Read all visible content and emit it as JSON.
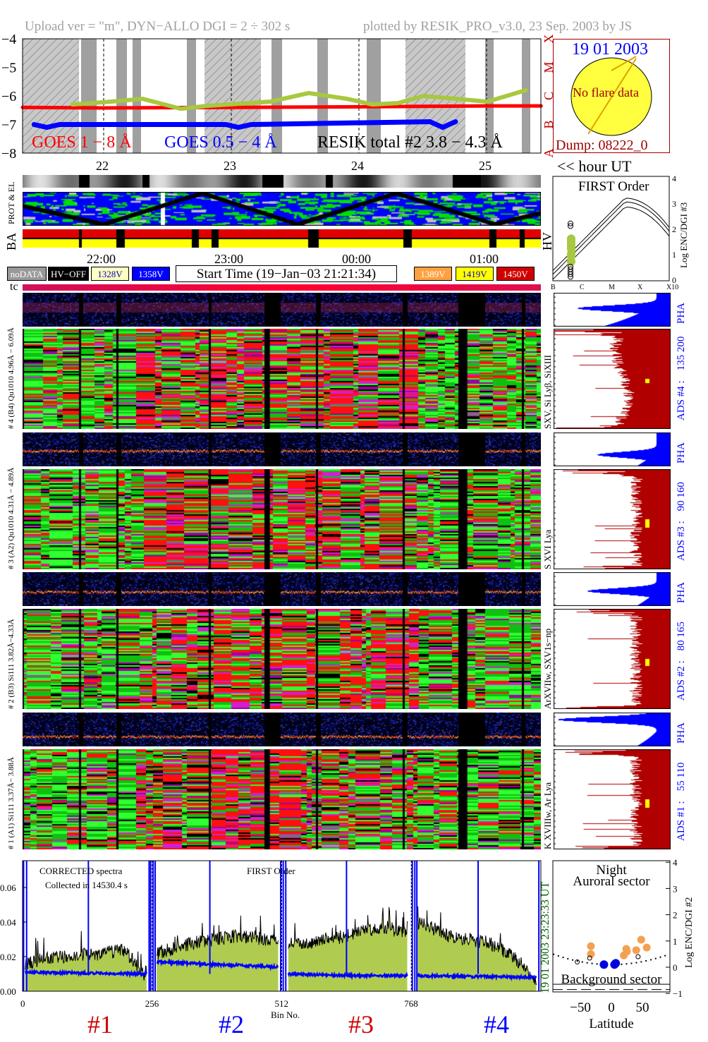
{
  "header": {
    "upload_info": "Upload ver = \"m\", DYN−ALLO DGI =   2 ÷ 302 s",
    "plotted_by": "plotted by RESIK_PRO_v3.0, 23 Sep. 2003 by JS"
  },
  "goes_panel": {
    "y_ticks": [
      "−4",
      "−5",
      "−6",
      "−7",
      "−8"
    ],
    "class_labels": [
      "X",
      "M",
      "C",
      "B",
      "A"
    ],
    "legend": {
      "goes_long": "GOES 1 − 8 Å",
      "goes_short": "GOES 0.5 − 4 Å",
      "resik": "RESIK total #2  3.8 − 4.3 Å"
    },
    "hour_labels": [
      "22",
      "23",
      "24",
      "25"
    ],
    "hour_unit": "<< hour UT",
    "colors": {
      "goes_long": "#ff0000",
      "goes_short": "#0000ff",
      "resik": "#a8c840",
      "resik_alt": "#f4a050"
    }
  },
  "sun_panel": {
    "date": "19 01 2003",
    "status": "No flare data",
    "dump": "Dump: 08222_0"
  },
  "orbit_panels": {
    "prot_el_label": "PROT & EL",
    "ba_label": "BA",
    "hv_label": "HV"
  },
  "time_axis": {
    "labels": [
      "22:00",
      "23:00",
      "00:00",
      "01:00"
    ],
    "start_time": "Start Time (19−Jan−03 21:21:34)",
    "tc_label": "tc"
  },
  "hv_legend": [
    {
      "label": "noDATA",
      "color": "#999999",
      "text_color": "#ffffff"
    },
    {
      "label": "HV−OFF",
      "color": "#000000",
      "text_color": "#ffffff"
    },
    {
      "label": "1328V",
      "color": "#ffffc0",
      "text_color": "#0000c0"
    },
    {
      "label": "1358V",
      "color": "#0000ff",
      "text_color": "#ffffff"
    },
    {
      "label": "1389V",
      "color": "#ffa040",
      "text_color": "#ffffff"
    },
    {
      "label": "1419V",
      "color": "#ffff00",
      "text_color": "#0000c0"
    },
    {
      "label": "1450V",
      "color": "#d00000",
      "text_color": "#ffffff"
    }
  ],
  "first_order_panel": {
    "title": "FIRST Order",
    "x_ticks": [
      "B",
      "C",
      "M",
      "X",
      "X10"
    ],
    "y_ticks": [
      "0",
      "1",
      "2",
      "3",
      "4"
    ],
    "ylabel": "Log ENC/DGI #3"
  },
  "channels": [
    {
      "left_label": "# 4 (B4) Qu1010 4.96Å − 6.09Å",
      "lines": "SXV, Si Lyβ, SiXIII",
      "ads": "ADS #4 :",
      "range": "135 200",
      "pha": "PHA"
    },
    {
      "left_label": "# 3 (A2) Qu1010 4.31Å − 4.89Å",
      "lines": "S XVI Lya",
      "ads": "ADS #3 :",
      "range": "90 160",
      "pha": "PHA"
    },
    {
      "left_label": "# 2 (B3) Si111 3.82Å−4.33Å",
      "lines": "ArXVIIw, SXV1s−np",
      "ads": "ADS #2 :",
      "range": "80 165",
      "pha": "PHA"
    },
    {
      "left_label": "# 1 (A1) Si111 3.37Å− 3.88Å",
      "lines": "K XVIIIw, Ar Lya",
      "ads": "ADS #1 :",
      "range": "55 110",
      "pha": "PHA"
    }
  ],
  "spectrum_panel": {
    "note1": "CORRECTED spectra",
    "note2": "Collected in 14530.4 s",
    "note3": "FIRST Order",
    "y_ticks": [
      "0.00",
      "0.02",
      "0.04",
      "0.06"
    ],
    "x_ticks": [
      "0",
      "256",
      "512",
      "768"
    ],
    "xlabel": "Bin No.",
    "channel_ids": [
      {
        "label": "#1",
        "color": "#d00000"
      },
      {
        "label": "#2",
        "color": "#0000ff"
      },
      {
        "label": "#3",
        "color": "#d00000"
      },
      {
        "label": "#4",
        "color": "#0000ff"
      }
    ],
    "timestamp": "19 01 2003    23:23:33 UT"
  },
  "latitude_panel": {
    "title1": "Night",
    "title2": "Auroral sector",
    "bottom_label": "Background sector",
    "x_ticks": [
      "−50",
      "0",
      "50"
    ],
    "y_ticks": [
      "4",
      "3",
      "2",
      "1",
      "0",
      "−1"
    ],
    "xlabel": "Latitude",
    "ylabel": "Log ENC/DGI #2"
  },
  "chart_data": [
    {
      "type": "line",
      "title": "",
      "xlabel": "hour UT",
      "ylabel": "",
      "x_range": [
        21.36,
        25.42
      ],
      "ylim": [
        -8,
        -4
      ],
      "series": [
        {
          "name": "GOES 1 − 8 Å",
          "color": "#ff0000",
          "x": [
            21.36,
            22.0,
            23.0,
            24.0,
            25.0,
            25.42
          ],
          "y": [
            -6.4,
            -6.42,
            -6.4,
            -6.38,
            -6.35,
            -6.35
          ]
        },
        {
          "name": "GOES 0.5 − 4 Å",
          "color": "#0000ff",
          "x": [
            21.45,
            21.55,
            21.65,
            22.95,
            23.05,
            23.15,
            24.55,
            24.65,
            24.75
          ],
          "y": [
            -7.0,
            -7.1,
            -7.0,
            -7.0,
            -7.1,
            -7.0,
            -6.9,
            -7.1,
            -6.9
          ]
        },
        {
          "name": "RESIK total #2  3.8 − 4.3 Å",
          "color": "#a8c840",
          "x": [
            21.75,
            22.05,
            22.3,
            22.6,
            22.8,
            23.3,
            23.6,
            23.9,
            24.1,
            24.3,
            24.5,
            25.0,
            25.3
          ],
          "y": [
            -6.3,
            -6.2,
            -6.1,
            -6.45,
            -6.35,
            -6.2,
            -5.9,
            -6.1,
            -6.3,
            -6.25,
            -6.0,
            -6.2,
            -5.8
          ]
        }
      ]
    },
    {
      "type": "line",
      "title": "",
      "xlabel": "Bin No.",
      "ylabel": "",
      "x_range": [
        0,
        1024
      ],
      "ylim": [
        0,
        0.075
      ],
      "series": [
        {
          "name": "",
          "color": "#a8c840",
          "x": [
            5,
            40,
            80,
            120,
            160,
            200,
            240,
            265,
            300,
            340,
            380,
            420,
            460,
            500,
            525,
            560,
            600,
            640,
            680,
            720,
            760,
            780,
            800,
            840,
            880,
            920,
            960,
            1000,
            1015
          ],
          "y": [
            0.015,
            0.019,
            0.02,
            0.021,
            0.022,
            0.024,
            0.01,
            0.022,
            0.025,
            0.028,
            0.03,
            0.032,
            0.031,
            0.029,
            0.027,
            0.028,
            0.03,
            0.032,
            0.035,
            0.037,
            0.033,
            0.04,
            0.038,
            0.032,
            0.03,
            0.028,
            0.022,
            0.012,
            0.005
          ]
        },
        {
          "name": "",
          "color": "#0000ff",
          "x": [
            5,
            120,
            240,
            265,
            380,
            505,
            525,
            640,
            760,
            780,
            900,
            1015
          ],
          "y": [
            0.011,
            0.0105,
            0.01,
            0.017,
            0.0155,
            0.014,
            0.01,
            0.009,
            0.009,
            0.009,
            0.0085,
            0.008
          ]
        }
      ]
    },
    {
      "type": "scatter",
      "title": "",
      "xlabel": "Latitude",
      "ylabel": "Log ENC/DGI #2",
      "xlim": [
        -94,
        94
      ],
      "ylim": [
        -1,
        4
      ],
      "series": [
        {
          "name": "",
          "color": "#f4a050",
          "x": [
            -33,
            -33,
            20,
            24,
            25,
            40,
            48,
            57
          ],
          "y": [
            0.8,
            0.5,
            0.45,
            0.7,
            0.6,
            0.65,
            1.05,
            0.75
          ]
        },
        {
          "name": "",
          "color": "#0000e0",
          "x": [
            -12,
            5,
            7
          ],
          "y": [
            0.1,
            0.1,
            0.15
          ]
        },
        {
          "name": "",
          "color": "#000000",
          "x": [
            -55,
            -35,
            43
          ],
          "y": [
            0.2,
            0.35,
            0.4
          ]
        }
      ]
    },
    {
      "type": "scatter",
      "title": "FIRST Order",
      "xlabel": "",
      "ylabel": "Log ENC/DGI #3",
      "ylim": [
        0,
        4
      ],
      "series": [
        {
          "name": "",
          "color": "#a8c840",
          "x_class": "B-C",
          "y": [
            0.7,
            0.9,
            1.0,
            1.2,
            1.3,
            1.4,
            1.5,
            1.6
          ]
        }
      ]
    }
  ]
}
